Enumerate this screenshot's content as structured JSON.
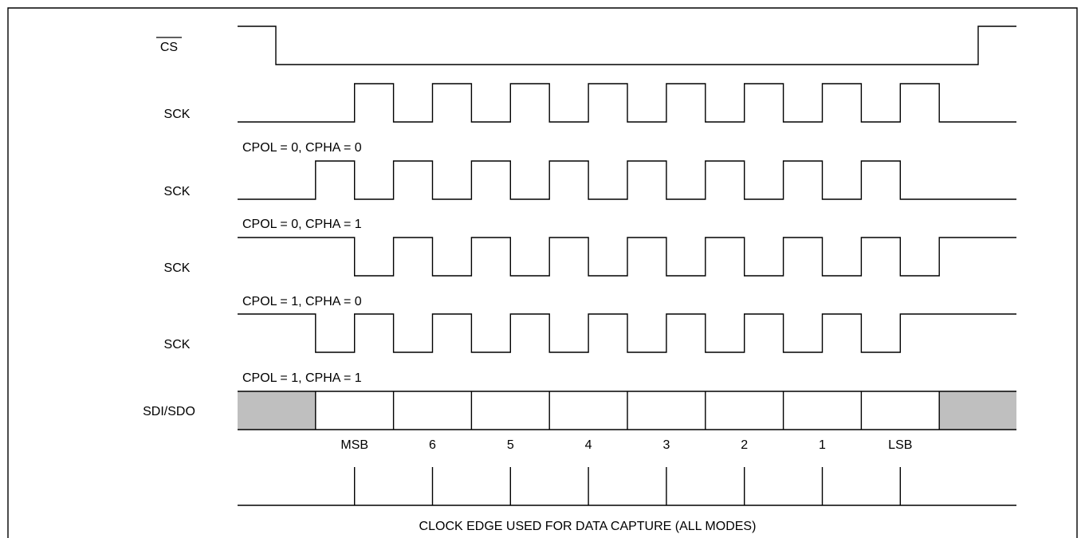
{
  "diagram": {
    "cs_label": "CS",
    "sck_label": "SCK",
    "modes": [
      {
        "caption": "CPOL = 0, CPHA = 0",
        "idle": "low",
        "first_transition_half": 3
      },
      {
        "caption": "CPOL = 0, CPHA = 1",
        "idle": "low",
        "first_transition_half": 2
      },
      {
        "caption": "CPOL = 1, CPHA = 0",
        "idle": "high",
        "first_transition_half": 3
      },
      {
        "caption": "CPOL = 1, CPHA = 1",
        "idle": "high",
        "first_transition_half": 2
      }
    ],
    "clock_cycles": 8,
    "data_label": "SDI/SDO",
    "bit_labels": [
      "MSB",
      "6",
      "5",
      "4",
      "3",
      "2",
      "1",
      "LSB"
    ],
    "capture_caption": "CLOCK EDGE USED FOR DATA CAPTURE (ALL MODES)",
    "colors": {
      "line": "#000000",
      "shade": "#bfbfbf",
      "background": "#ffffff"
    }
  }
}
